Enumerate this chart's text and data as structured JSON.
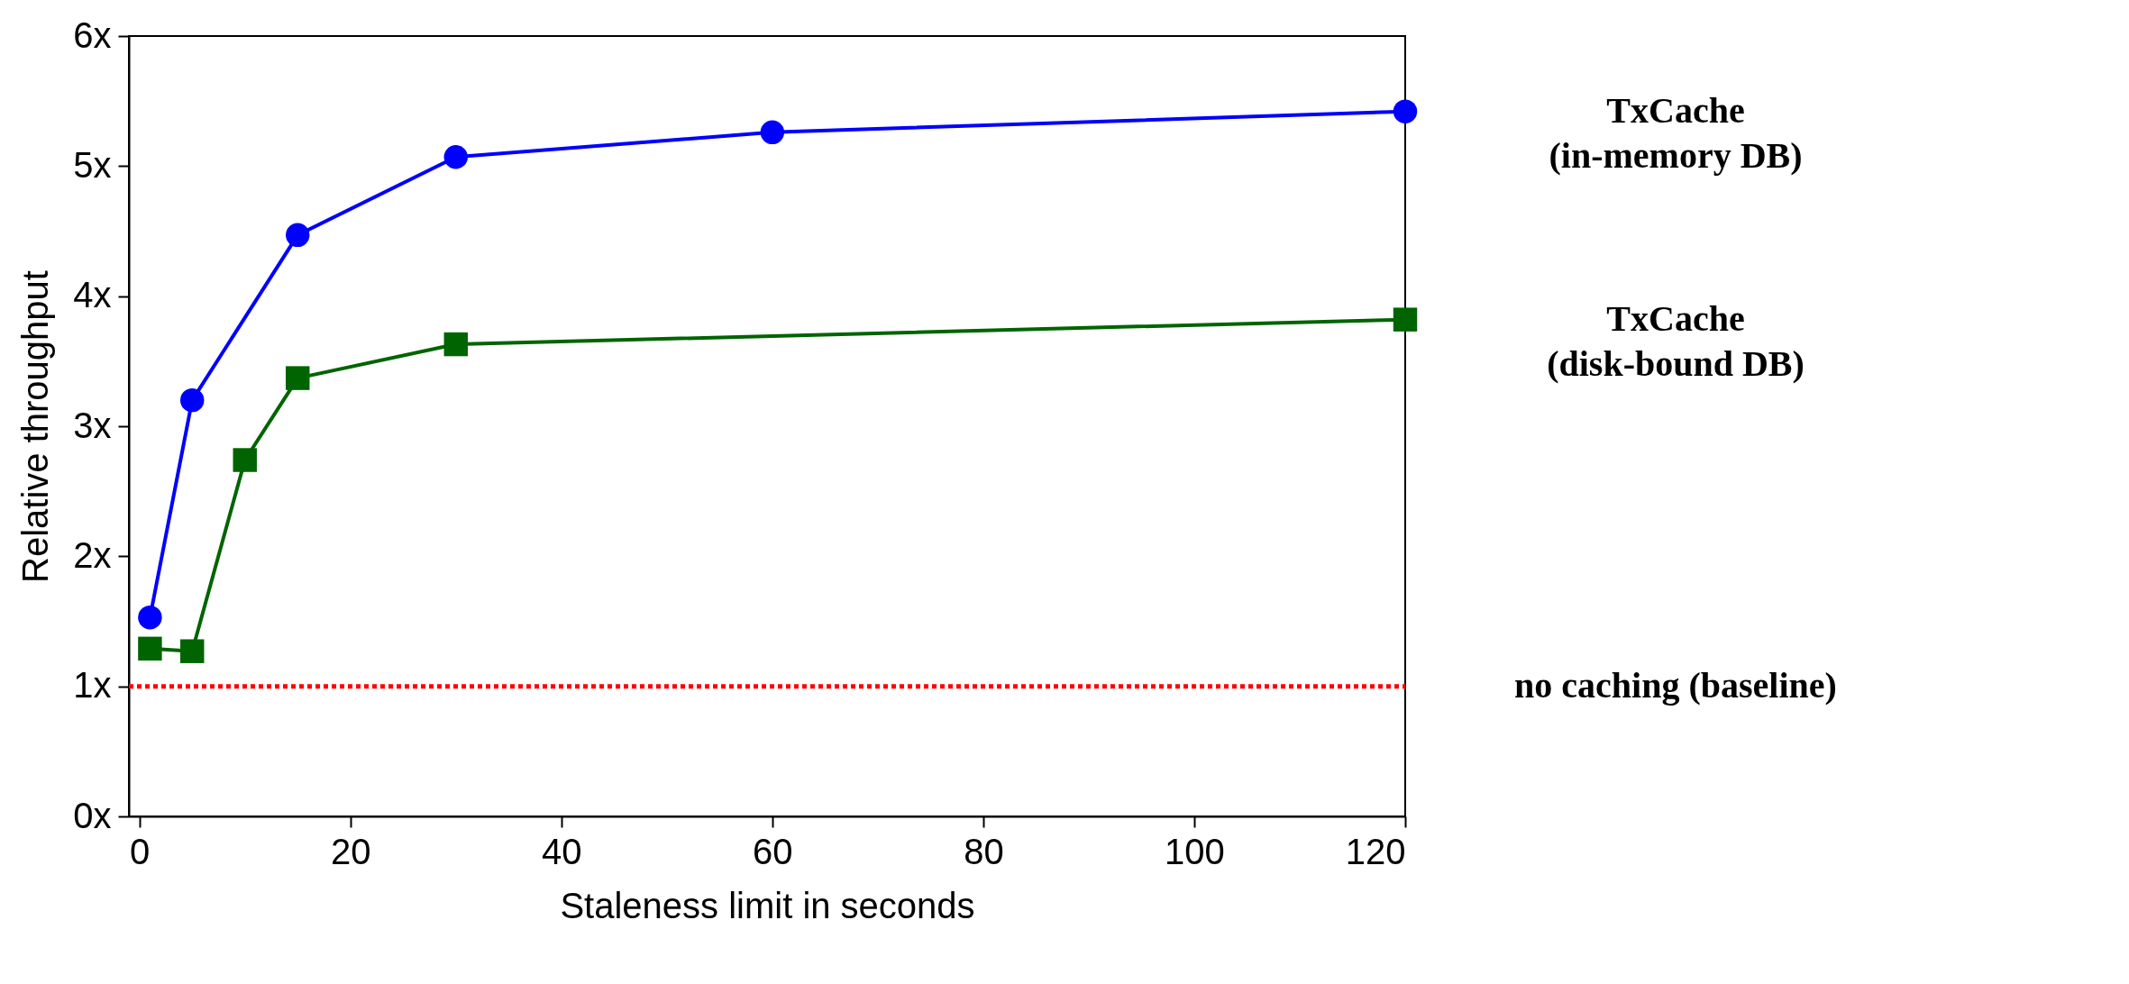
{
  "chart_data": {
    "type": "line",
    "xlabel": "Staleness limit in seconds",
    "ylabel": "Relative throughput",
    "xlim": [
      -1,
      120
    ],
    "xticks": [
      0,
      20,
      40,
      60,
      80,
      100,
      120
    ],
    "ylim": [
      0,
      6
    ],
    "yticks": [
      {
        "value": 0,
        "label": "0x"
      },
      {
        "value": 1,
        "label": "1x"
      },
      {
        "value": 2,
        "label": "2x"
      },
      {
        "value": 3,
        "label": "3x"
      },
      {
        "value": 4,
        "label": "4x"
      },
      {
        "value": 5,
        "label": "5x"
      },
      {
        "value": 6,
        "label": "6x"
      }
    ],
    "grid": false,
    "series": [
      {
        "name": "TxCache\n(in-memory DB)",
        "color": "#0000ff",
        "marker": "circle",
        "line_style": "solid",
        "x": [
          1,
          5,
          15,
          30,
          60,
          120
        ],
        "values": [
          1.53,
          3.2,
          4.47,
          5.07,
          5.26,
          5.42
        ]
      },
      {
        "name": "TxCache\n(disk-bound DB)",
        "color": "#006400",
        "marker": "square",
        "line_style": "solid",
        "x": [
          1,
          5,
          10,
          15,
          30,
          120
        ],
        "values": [
          1.29,
          1.27,
          2.74,
          3.37,
          3.63,
          3.82
        ]
      },
      {
        "name": "no caching (baseline)",
        "color": "#ff0000",
        "marker": "none",
        "line_style": "dotted",
        "x": [
          -1,
          120
        ],
        "values": [
          1,
          1
        ]
      }
    ]
  }
}
